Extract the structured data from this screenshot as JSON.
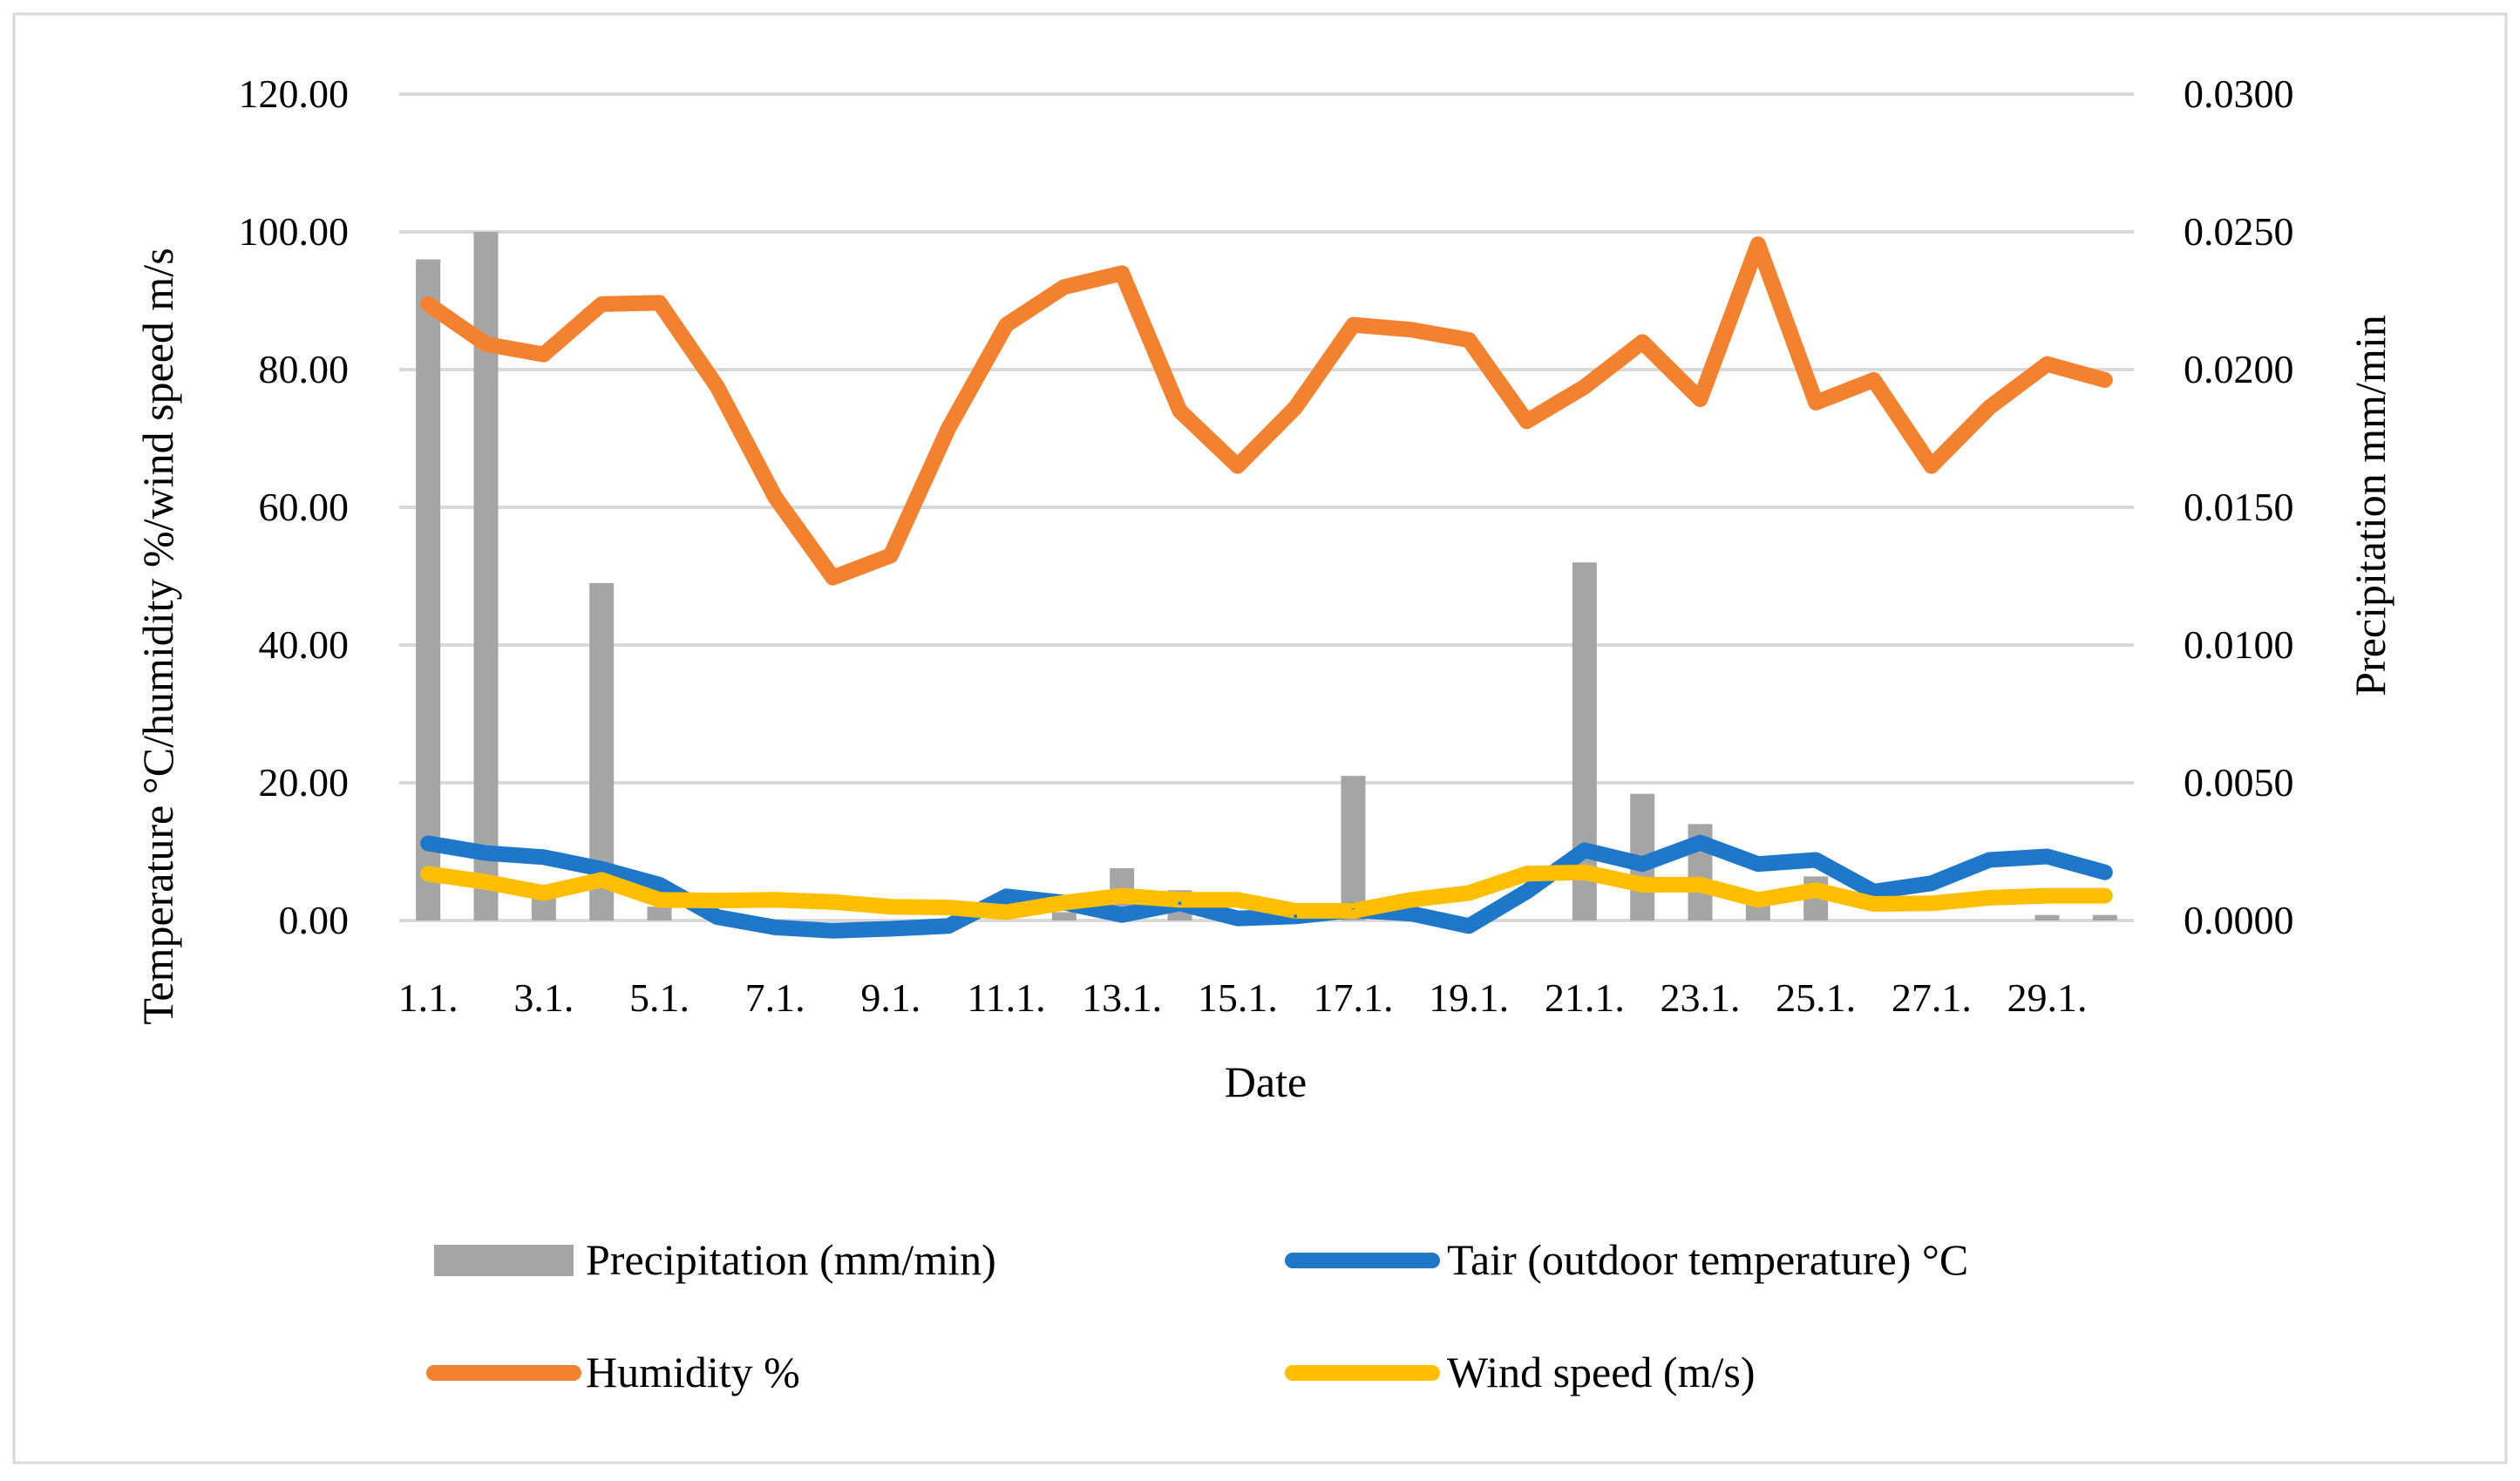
{
  "chart_data": {
    "type": "bar+line",
    "x": [
      "1.1.",
      "2.1.",
      "3.1.",
      "4.1.",
      "5.1.",
      "6.1.",
      "7.1.",
      "8.1.",
      "9.1.",
      "10.1.",
      "11.1.",
      "12.1.",
      "13.1.",
      "14.1.",
      "15.1.",
      "16.1.",
      "17.1.",
      "18.1.",
      "19.1.",
      "20.1.",
      "21.1.",
      "22.1.",
      "23.1.",
      "24.1.",
      "25.1.",
      "26.1.",
      "27.1.",
      "28.1.",
      "29.1.",
      "30.1."
    ],
    "x_tick_labels": [
      "1.1.",
      "3.1.",
      "5.1.",
      "7.1.",
      "9.1.",
      "11.1.",
      "13.1.",
      "15.1.",
      "17.1.",
      "19.1.",
      "21.1.",
      "23.1.",
      "25.1.",
      "27.1.",
      "29.1."
    ],
    "xlabel": "Date",
    "ylabel_left": "Temperature °C/humidity %/wind speed m/s",
    "ylabel_right": "Precipitation mm/min",
    "ylim_left": [
      0,
      120
    ],
    "ylim_right": [
      0,
      0.03
    ],
    "yticks_left": [
      "0.00",
      "20.00",
      "40.00",
      "60.00",
      "80.00",
      "100.00",
      "120.00"
    ],
    "yticks_right": [
      "0.0000",
      "0.0050",
      "0.0100",
      "0.0150",
      "0.0200",
      "0.0250",
      "0.0300"
    ],
    "grid": true,
    "legend_position": "bottom",
    "series": [
      {
        "name": "Precipitation (mm/min)",
        "kind": "bar",
        "axis": "right",
        "color": "#a5a5a5",
        "values": [
          0.024,
          0.025,
          0.0008,
          0.01225,
          0.0005,
          0,
          0,
          0,
          0,
          0,
          0,
          0.0003,
          0.0019,
          0.0011,
          0,
          0,
          0.00525,
          0,
          0,
          0,
          0.013,
          0.0046,
          0.0035,
          0.0009,
          0.0016,
          0,
          0,
          0,
          0.0002,
          0.0002
        ]
      },
      {
        "name": "Tair (outdoor temperature) °C",
        "kind": "line",
        "axis": "left",
        "color": "#1f77c9",
        "values": [
          11.2,
          9.8,
          9.2,
          7.5,
          5.2,
          0.5,
          -1.0,
          -1.5,
          -1.2,
          -0.8,
          3.5,
          2.6,
          0.8,
          2.5,
          0.3,
          0.6,
          1.5,
          1.0,
          -0.8,
          4.2,
          10.2,
          8.2,
          11.3,
          8.2,
          8.8,
          4.2,
          5.4,
          8.8,
          9.3,
          7.0
        ]
      },
      {
        "name": "Humidity %",
        "kind": "line",
        "axis": "left",
        "color": "#f28230",
        "values": [
          89.5,
          83.7,
          82.2,
          89.5,
          89.7,
          77.5,
          61.5,
          49.8,
          53.0,
          71.5,
          86.5,
          92.0,
          94.0,
          74.0,
          66.0,
          74.5,
          86.5,
          85.8,
          84.3,
          72.5,
          77.5,
          84.0,
          75.7,
          98.2,
          75.2,
          78.5,
          66.0,
          74.5,
          80.8,
          78.5
        ]
      },
      {
        "name": "Wind speed (m/s)",
        "kind": "line",
        "axis": "left",
        "color": "#ffbf00",
        "values": [
          6.8,
          5.6,
          4.0,
          5.9,
          3.0,
          2.9,
          3.0,
          2.7,
          2.0,
          1.9,
          1.2,
          2.6,
          3.6,
          3.0,
          3.0,
          1.4,
          1.4,
          3.0,
          4.0,
          6.8,
          7.0,
          5.2,
          5.2,
          3.0,
          4.4,
          2.4,
          2.5,
          3.3,
          3.6,
          3.6
        ]
      }
    ]
  }
}
